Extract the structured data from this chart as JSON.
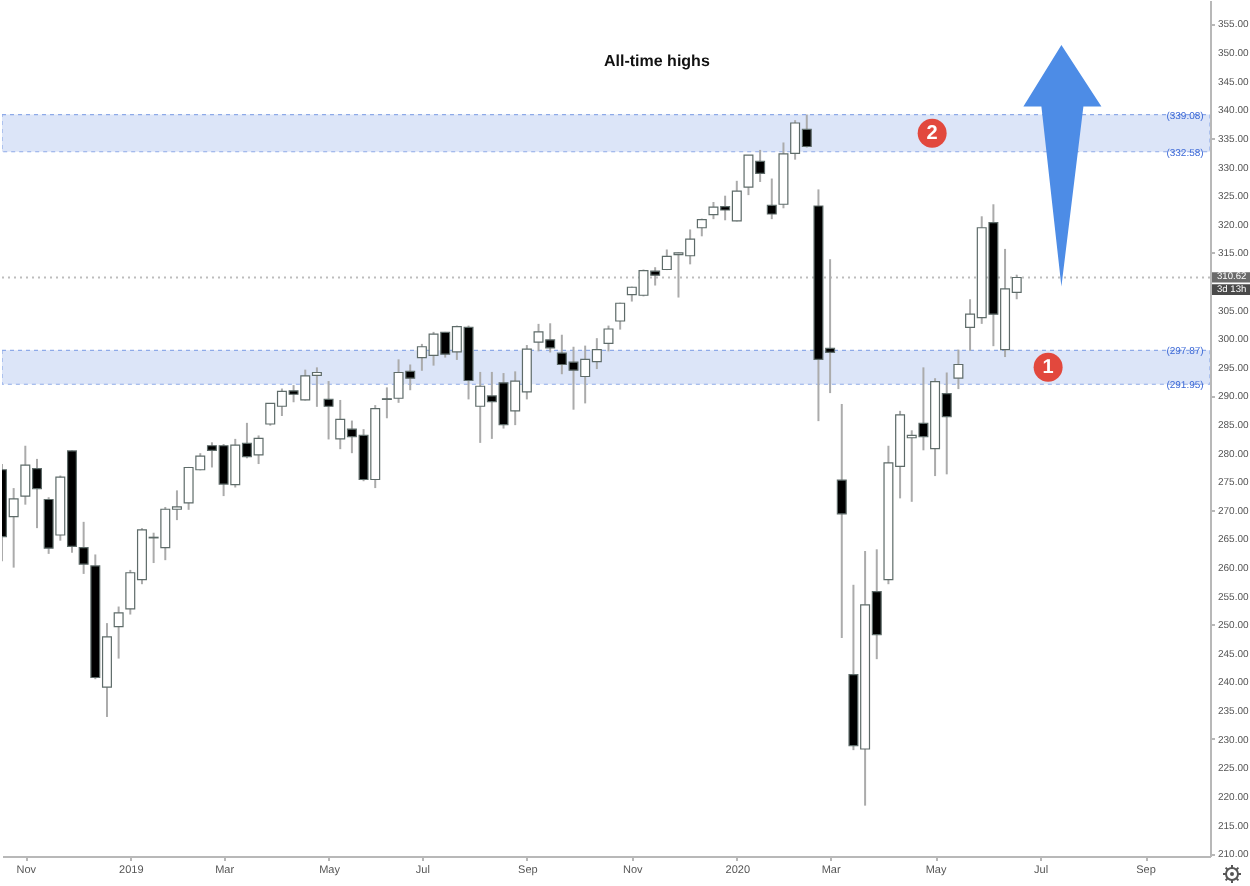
{
  "chart_data": {
    "type": "candlestick",
    "title": "All-time highs",
    "x": [
      "2018-10-22",
      "2018-10-29",
      "2018-11-05",
      "2018-11-12",
      "2018-11-19",
      "2018-11-26",
      "2018-12-03",
      "2018-12-10",
      "2018-12-17",
      "2018-12-24",
      "2018-12-31",
      "2019-01-07",
      "2019-01-14",
      "2019-01-21",
      "2019-01-28",
      "2019-02-04",
      "2019-02-11",
      "2019-02-18",
      "2019-02-25",
      "2019-03-04",
      "2019-03-11",
      "2019-03-18",
      "2019-03-25",
      "2019-04-01",
      "2019-04-08",
      "2019-04-15",
      "2019-04-22",
      "2019-04-29",
      "2019-05-06",
      "2019-05-13",
      "2019-05-20",
      "2019-05-27",
      "2019-06-03",
      "2019-06-10",
      "2019-06-17",
      "2019-06-24",
      "2019-07-01",
      "2019-07-08",
      "2019-07-15",
      "2019-07-22",
      "2019-07-29",
      "2019-08-05",
      "2019-08-12",
      "2019-08-19",
      "2019-08-26",
      "2019-09-02",
      "2019-09-09",
      "2019-09-16",
      "2019-09-23",
      "2019-09-30",
      "2019-10-07",
      "2019-10-14",
      "2019-10-21",
      "2019-10-28",
      "2019-11-04",
      "2019-11-11",
      "2019-11-18",
      "2019-11-25",
      "2019-12-02",
      "2019-12-09",
      "2019-12-16",
      "2019-12-23",
      "2019-12-30",
      "2020-01-06",
      "2020-01-13",
      "2020-01-20",
      "2020-01-27",
      "2020-02-03",
      "2020-02-10",
      "2020-02-17",
      "2020-02-24",
      "2020-03-02",
      "2020-03-09",
      "2020-03-16",
      "2020-03-23",
      "2020-03-30",
      "2020-04-06",
      "2020-04-13",
      "2020-04-20",
      "2020-04-27",
      "2020-05-04",
      "2020-05-11",
      "2020-05-18",
      "2020-05-25",
      "2020-06-01",
      "2020-06-08",
      "2020-06-15",
      "2020-06-22"
    ],
    "ohlc": [
      [
        277.0,
        278.0,
        261.0,
        265.3
      ],
      [
        268.8,
        273.8,
        259.9,
        271.9
      ],
      [
        272.4,
        281.2,
        270.9,
        277.8
      ],
      [
        277.2,
        278.9,
        266.8,
        273.7
      ],
      [
        271.8,
        272.2,
        262.3,
        263.3
      ],
      [
        265.6,
        276.0,
        264.6,
        275.7
      ],
      [
        280.3,
        280.4,
        262.5,
        263.6
      ],
      [
        263.4,
        267.9,
        258.8,
        260.5
      ],
      [
        260.2,
        262.2,
        240.4,
        240.7
      ],
      [
        239.0,
        250.2,
        233.8,
        247.8
      ],
      [
        249.6,
        253.1,
        244.0,
        252.0
      ],
      [
        252.7,
        259.5,
        251.7,
        259.0
      ],
      [
        257.8,
        266.8,
        257.0,
        266.5
      ],
      [
        265.2,
        266.0,
        260.7,
        265.1
      ],
      [
        263.4,
        270.5,
        261.2,
        270.1
      ],
      [
        270.1,
        273.4,
        268.2,
        270.5
      ],
      [
        271.2,
        277.5,
        270.0,
        277.4
      ],
      [
        277.0,
        279.9,
        276.9,
        279.4
      ],
      [
        281.2,
        281.8,
        277.4,
        280.4
      ],
      [
        281.2,
        281.5,
        272.4,
        274.5
      ],
      [
        274.4,
        282.4,
        273.9,
        281.3
      ],
      [
        281.6,
        285.2,
        279.0,
        279.3
      ],
      [
        279.6,
        283.0,
        278.0,
        282.5
      ],
      [
        285.0,
        288.6,
        284.7,
        288.6
      ],
      [
        288.1,
        291.2,
        286.4,
        290.7
      ],
      [
        290.8,
        291.8,
        288.8,
        290.2
      ],
      [
        289.2,
        294.5,
        289.1,
        293.4
      ],
      [
        293.5,
        294.9,
        288.0,
        294.0
      ],
      [
        289.3,
        292.5,
        282.3,
        288.1
      ],
      [
        282.4,
        289.2,
        280.6,
        285.8
      ],
      [
        284.1,
        285.6,
        279.9,
        282.8
      ],
      [
        283.0,
        284.1,
        275.0,
        275.3
      ],
      [
        275.3,
        288.3,
        273.8,
        287.7
      ],
      [
        289.4,
        291.4,
        286.0,
        289.3
      ],
      [
        289.5,
        296.3,
        288.7,
        294.0
      ],
      [
        294.2,
        295.4,
        290.9,
        293.0
      ],
      [
        296.6,
        299.0,
        294.3,
        298.5
      ],
      [
        297.0,
        301.1,
        295.2,
        300.7
      ],
      [
        301.0,
        301.1,
        296.6,
        297.2
      ],
      [
        297.6,
        302.2,
        296.2,
        302.0
      ],
      [
        301.9,
        302.2,
        289.3,
        292.6
      ],
      [
        288.1,
        294.1,
        281.7,
        291.6
      ],
      [
        289.9,
        294.1,
        282.4,
        288.9
      ],
      [
        292.2,
        293.9,
        284.2,
        284.9
      ],
      [
        287.3,
        294.2,
        284.8,
        292.5
      ],
      [
        290.6,
        298.8,
        289.3,
        298.1
      ],
      [
        299.3,
        302.5,
        297.7,
        301.1
      ],
      [
        299.7,
        302.6,
        297.5,
        298.3
      ],
      [
        297.4,
        300.6,
        293.7,
        295.4
      ],
      [
        295.8,
        298.5,
        287.5,
        294.4
      ],
      [
        293.3,
        298.7,
        288.6,
        296.3
      ],
      [
        295.9,
        300.0,
        294.6,
        298.0
      ],
      [
        299.1,
        302.2,
        297.7,
        301.6
      ],
      [
        303.0,
        306.2,
        301.5,
        306.1
      ],
      [
        307.6,
        309.0,
        306.4,
        308.9
      ],
      [
        307.5,
        312.0,
        307.3,
        311.8
      ],
      [
        311.7,
        312.4,
        309.2,
        311.0
      ],
      [
        312.0,
        315.5,
        311.9,
        314.3
      ],
      [
        314.6,
        315.0,
        307.1,
        314.9
      ],
      [
        314.4,
        319.0,
        312.9,
        317.3
      ],
      [
        319.3,
        320.9,
        317.8,
        320.7
      ],
      [
        321.6,
        323.8,
        320.8,
        322.9
      ],
      [
        323.0,
        324.9,
        320.6,
        322.4
      ],
      [
        320.5,
        327.5,
        320.4,
        325.7
      ],
      [
        326.4,
        332.0,
        325.0,
        332.0
      ],
      [
        330.9,
        332.9,
        327.3,
        328.8
      ],
      [
        323.2,
        327.9,
        320.8,
        321.7
      ],
      [
        323.4,
        334.2,
        322.7,
        332.2
      ],
      [
        332.3,
        338.1,
        331.2,
        337.6
      ],
      [
        336.5,
        339.08,
        333.3,
        333.5
      ],
      [
        323.1,
        326.0,
        285.5,
        296.3
      ],
      [
        298.2,
        313.8,
        290.4,
        297.5
      ],
      [
        275.2,
        288.5,
        247.6,
        269.3
      ],
      [
        241.2,
        256.9,
        228.0,
        228.8
      ],
      [
        228.2,
        262.8,
        218.3,
        253.4
      ],
      [
        255.7,
        263.1,
        243.9,
        248.2
      ],
      [
        257.8,
        281.2,
        257.0,
        278.2
      ],
      [
        277.6,
        287.3,
        272.0,
        286.6
      ],
      [
        282.6,
        283.9,
        271.4,
        283.0
      ],
      [
        285.1,
        294.9,
        280.4,
        282.8
      ],
      [
        280.7,
        293.0,
        275.9,
        292.4
      ],
      [
        290.3,
        294.0,
        276.2,
        286.3
      ],
      [
        293.0,
        298.0,
        291.1,
        295.4
      ],
      [
        301.9,
        306.8,
        297.8,
        304.2
      ],
      [
        303.6,
        321.3,
        302.5,
        319.3
      ],
      [
        320.2,
        323.4,
        298.6,
        304.2
      ],
      [
        298.0,
        315.6,
        296.7,
        308.6
      ],
      [
        308.0,
        311.1,
        306.8,
        310.6
      ]
    ],
    "colors": [
      "#000000",
      "#ffffff",
      "#ffffff",
      "#000000",
      "#000000",
      "#ffffff",
      "#000000",
      "#000000",
      "#000000",
      "#ffffff",
      "#ffffff",
      "#ffffff",
      "#ffffff",
      "#000000",
      "#ffffff",
      "#ffffff",
      "#ffffff",
      "#ffffff",
      "#000000",
      "#000000",
      "#ffffff",
      "#000000",
      "#ffffff",
      "#ffffff",
      "#ffffff",
      "#000000",
      "#ffffff",
      "#ffffff",
      "#000000",
      "#ffffff",
      "#000000",
      "#000000",
      "#ffffff",
      "#000000",
      "#ffffff",
      "#000000",
      "#ffffff",
      "#ffffff",
      "#000000",
      "#ffffff",
      "#000000",
      "#ffffff",
      "#000000",
      "#000000",
      "#ffffff",
      "#ffffff",
      "#ffffff",
      "#000000",
      "#000000",
      "#000000",
      "#ffffff",
      "#ffffff",
      "#ffffff",
      "#ffffff",
      "#ffffff",
      "#ffffff",
      "#000000",
      "#ffffff",
      "#ffffff",
      "#ffffff",
      "#ffffff",
      "#ffffff",
      "#000000",
      "#ffffff",
      "#ffffff",
      "#000000",
      "#000000",
      "#ffffff",
      "#ffffff",
      "#000000",
      "#000000",
      "#000000",
      "#000000",
      "#000000",
      "#ffffff",
      "#000000",
      "#ffffff",
      "#ffffff",
      "#ffffff",
      "#000000",
      "#ffffff",
      "#000000",
      "#ffffff",
      "#ffffff",
      "#ffffff",
      "#000000",
      "#ffffff",
      "#ffffff"
    ],
    "xlim": [
      "2018-10-22",
      "2020-10-16"
    ],
    "ylim": [
      209.5,
      359.1
    ],
    "xticks": [
      {
        "value": "2018-11-05",
        "label": "Nov"
      },
      {
        "value": "2019-01-07",
        "label": "2019"
      },
      {
        "value": "2019-03-04",
        "label": "Mar"
      },
      {
        "value": "2019-05-06",
        "label": "May"
      },
      {
        "value": "2019-07-01",
        "label": "Jul"
      },
      {
        "value": "2019-09-02",
        "label": "Sep"
      },
      {
        "value": "2019-11-04",
        "label": "Nov"
      },
      {
        "value": "2020-01-06",
        "label": "2020"
      },
      {
        "value": "2020-03-02",
        "label": "Mar"
      },
      {
        "value": "2020-05-04",
        "label": "May"
      },
      {
        "value": "2020-07-06",
        "label": "Jul"
      },
      {
        "value": "2020-09-07",
        "label": "Sep"
      }
    ],
    "yticks": [
      {
        "value": 210,
        "label": "210.00"
      },
      {
        "value": 215,
        "label": "215.00"
      },
      {
        "value": 220,
        "label": "220.00"
      },
      {
        "value": 225,
        "label": "225.00"
      },
      {
        "value": 230,
        "label": "230.00"
      },
      {
        "value": 235,
        "label": "235.00"
      },
      {
        "value": 240,
        "label": "240.00"
      },
      {
        "value": 245,
        "label": "245.00"
      },
      {
        "value": 250,
        "label": "250.00"
      },
      {
        "value": 255,
        "label": "255.00"
      },
      {
        "value": 260,
        "label": "260.00"
      },
      {
        "value": 265,
        "label": "265.00"
      },
      {
        "value": 270,
        "label": "270.00"
      },
      {
        "value": 275,
        "label": "275.00"
      },
      {
        "value": 280,
        "label": "280.00"
      },
      {
        "value": 285,
        "label": "285.00"
      },
      {
        "value": 290,
        "label": "290.00"
      },
      {
        "value": 295,
        "label": "295.00"
      },
      {
        "value": 300,
        "label": "300.00"
      },
      {
        "value": 305,
        "label": "305.00"
      },
      {
        "value": 315,
        "label": "315.00"
      },
      {
        "value": 320,
        "label": "320.00"
      },
      {
        "value": 325,
        "label": "325.00"
      },
      {
        "value": 330,
        "label": "330.00"
      },
      {
        "value": 335,
        "label": "335.00"
      },
      {
        "value": 340,
        "label": "340.00"
      },
      {
        "value": 345,
        "label": "345.00"
      },
      {
        "value": 350,
        "label": "350.00"
      },
      {
        "value": 355,
        "label": "355.00"
      }
    ],
    "ref_lines": [
      {
        "axis": "y",
        "value": 310.62,
        "label": "310.62",
        "color": "#bdbdbd",
        "line_style": "dotted"
      }
    ],
    "bands": [
      {
        "axis": "y",
        "from": 332.58,
        "to": 339.08,
        "label": "2",
        "color": "#dce5f8"
      },
      {
        "axis": "y",
        "from": 291.95,
        "to": 297.87,
        "label": "1",
        "color": "#dce5f8"
      }
    ],
    "annotations": [
      {
        "text": "(339.08)",
        "x": "2020-10-01",
        "y": 339.08
      },
      {
        "text": "(332.58)",
        "x": "2020-10-01",
        "y": 332.58
      },
      {
        "text": "(297.87)",
        "x": "2020-10-01",
        "y": 297.87
      },
      {
        "text": "(291.95)",
        "x": "2020-10-01",
        "y": 291.95
      },
      "3d 13h"
    ]
  }
}
